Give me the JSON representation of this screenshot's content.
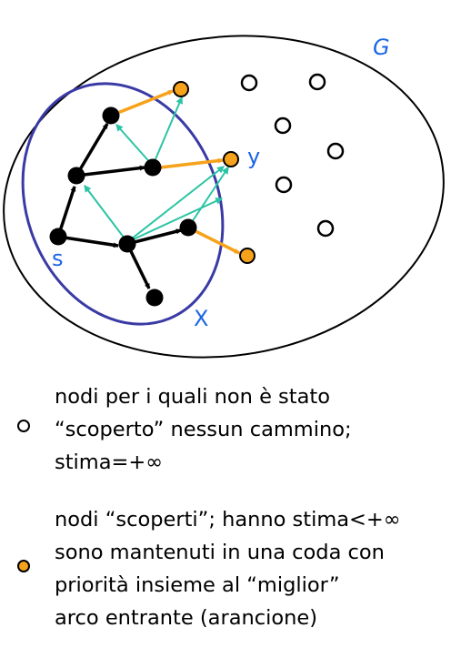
{
  "labels": {
    "graph": "G",
    "set": "X",
    "source": "s",
    "node_y": "y"
  },
  "colors": {
    "set_outline": "#3a3aa6",
    "discovered_fill": "#f7a21b",
    "visited_fill": "#000000",
    "label_blue": "#1a66e6",
    "teal_arc": "#2bc4a4",
    "orange_arc": "#f7a21b"
  },
  "legend": {
    "undiscovered": {
      "icon": "hollow-circle-icon",
      "lines": [
        "nodi per i quali non è stato",
        "“scoperto” nessun cammino;",
        "stima=+∞"
      ]
    },
    "discovered": {
      "icon": "orange-circle-icon",
      "lines": [
        "nodi “scoperti”; hanno stima<+∞",
        "sono mantenuti in una coda con",
        "priorità insieme al “miglior”",
        "arco entrante (arancione)"
      ]
    }
  }
}
